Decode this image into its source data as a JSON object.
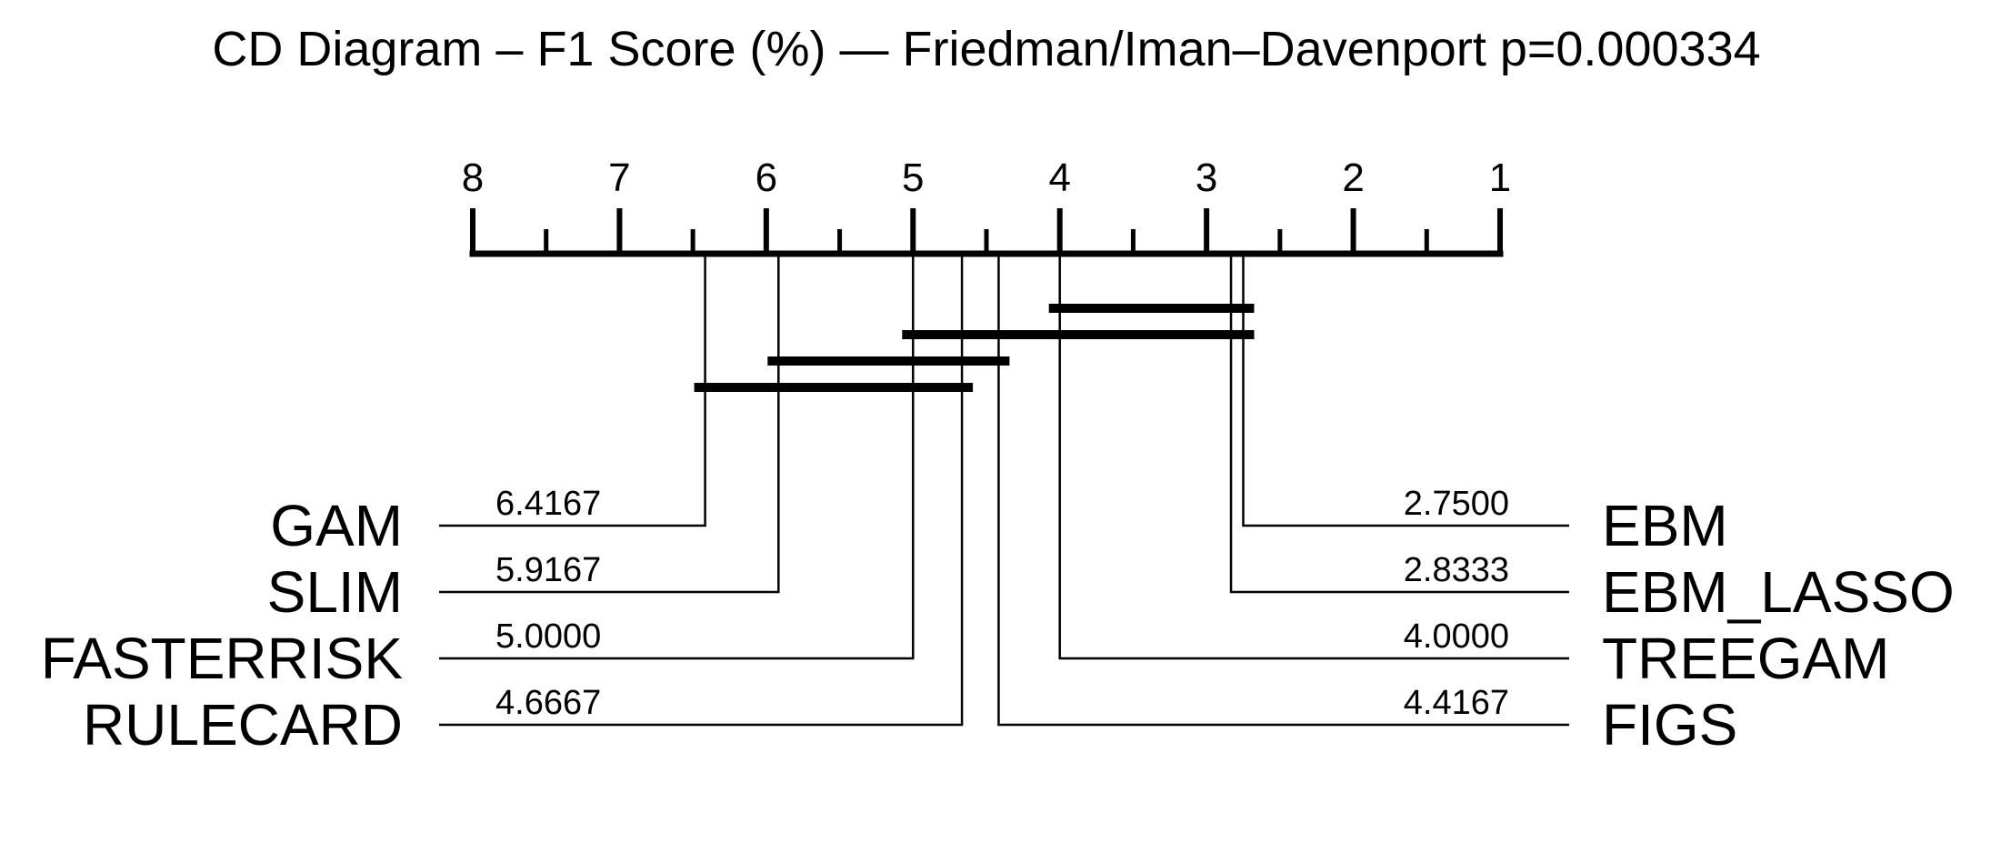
{
  "title": "CD Diagram – F1 Score (%) — Friedman/Iman–Davenport p=0.000334",
  "axis": {
    "min": 1,
    "max": 8,
    "reversed": true,
    "tick_labels": [
      "8",
      "7",
      "6",
      "5",
      "4",
      "3",
      "2",
      "1"
    ],
    "tick_values": [
      8,
      7,
      6,
      5,
      4,
      3,
      2,
      1
    ],
    "minor_ticks": [
      7.5,
      6.5,
      5.5,
      4.5,
      3.5,
      2.5,
      1.5
    ]
  },
  "left_methods": [
    {
      "name": "GAM",
      "rank": 6.4167,
      "rank_text": "6.4167"
    },
    {
      "name": "SLIM",
      "rank": 5.9167,
      "rank_text": "5.9167"
    },
    {
      "name": "FASTERRISK",
      "rank": 5.0,
      "rank_text": "5.0000"
    },
    {
      "name": "RULECARD",
      "rank": 4.6667,
      "rank_text": "4.6667"
    }
  ],
  "right_methods": [
    {
      "name": "EBM",
      "rank": 2.75,
      "rank_text": "2.7500"
    },
    {
      "name": "EBM_LASSO",
      "rank": 2.8333,
      "rank_text": "2.8333"
    },
    {
      "name": "TREEGAM",
      "rank": 4.0,
      "rank_text": "4.0000"
    },
    {
      "name": "FIGS",
      "rank": 4.4167,
      "rank_text": "4.4167"
    }
  ],
  "cliques": [
    {
      "from": 2.75,
      "to": 4.0
    },
    {
      "from": 2.75,
      "to": 5.0
    },
    {
      "from": 4.4167,
      "to": 5.9167
    },
    {
      "from": 4.6667,
      "to": 6.4167
    }
  ]
}
